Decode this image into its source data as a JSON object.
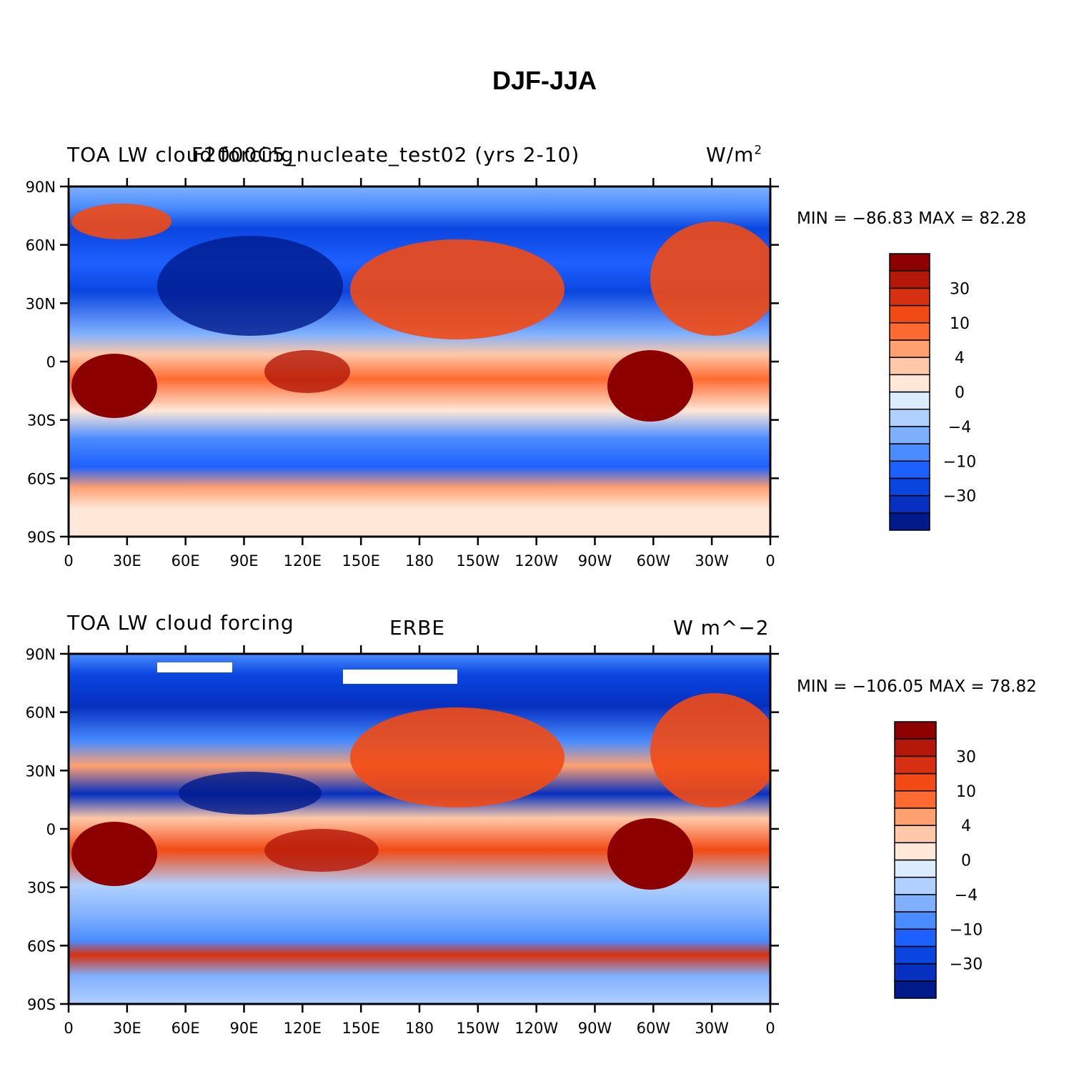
{
  "title": "DJF-JJA",
  "panels": [
    {
      "left_title": "TOA LW cloud forcing",
      "center_title": "F2000C5_nucleate_test02 (yrs 2-10)",
      "units": "W/m",
      "units_sup": "2",
      "minmax": "MIN = −86.83 MAX =  82.28"
    },
    {
      "left_title": "TOA LW cloud forcing",
      "center_title": "ERBE",
      "units": "W m^−2",
      "units_sup": "",
      "minmax": "MIN = −106.05 MAX =  78.82"
    }
  ],
  "axes": {
    "lat_labels": [
      "90N",
      "60N",
      "30N",
      "0",
      "30S",
      "60S",
      "90S"
    ],
    "lon_labels": [
      "0",
      "30E",
      "60E",
      "90E",
      "120E",
      "150E",
      "180",
      "150W",
      "120W",
      "90W",
      "60W",
      "30W",
      "0"
    ]
  },
  "colorbar": {
    "colors": [
      "#001a8c",
      "#0530c0",
      "#0a45e0",
      "#1e60ff",
      "#4a8cff",
      "#7fb0ff",
      "#b0d0ff",
      "#dcecff",
      "#ffe8d8",
      "#ffc8a8",
      "#ffa070",
      "#ff6a30",
      "#f24a14",
      "#d73010",
      "#b41808",
      "#8c0000"
    ],
    "tick_labels": [
      "30",
      "10",
      "4",
      "0",
      "−4",
      "−10",
      "−30"
    ]
  }
}
